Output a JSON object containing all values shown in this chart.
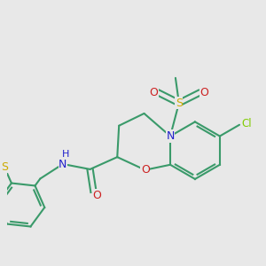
{
  "background_color": "#e8e8e8",
  "figsize": [
    3.0,
    3.0
  ],
  "dpi": 100,
  "atom_colors": {
    "C": "#3a9a6a",
    "N": "#2020cc",
    "O": "#cc2020",
    "S": "#ccaa00",
    "Cl": "#80cc00",
    "H": "#2020cc"
  },
  "bond_color": "#3a9a6a",
  "bond_width": 1.5,
  "xlim": [
    -3.2,
    4.2
  ],
  "ylim": [
    -4.0,
    3.2
  ]
}
